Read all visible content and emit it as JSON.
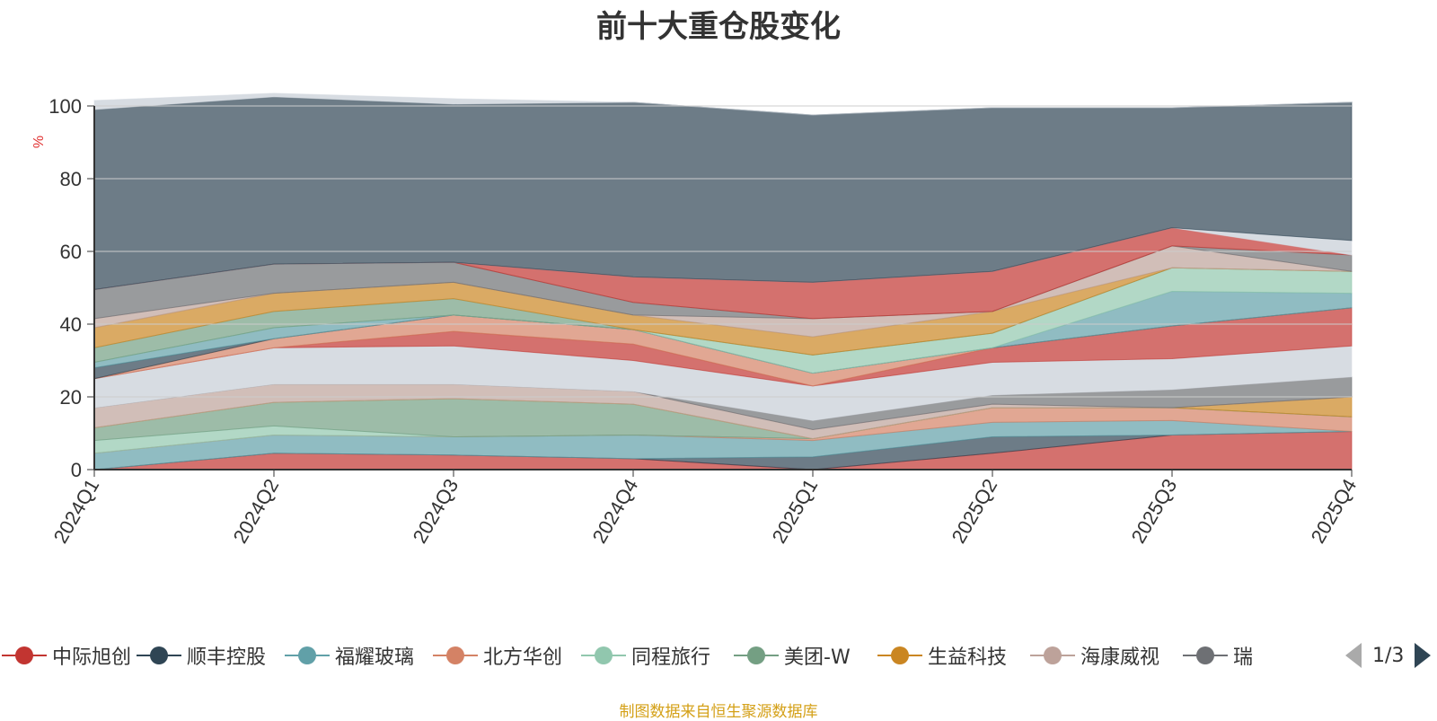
{
  "title": "前十大重仓股变化",
  "source": "制图数据来自恒生聚源数据库",
  "pager": {
    "text": "1/3"
  },
  "chart_data": {
    "type": "area",
    "stacked": true,
    "title": "前十大重仓股变化",
    "ylabel": "%",
    "ylim": [
      0,
      100
    ],
    "yticks": [
      0,
      20,
      40,
      60,
      80,
      100
    ],
    "grid": true,
    "categories": [
      "2024Q1",
      "2024Q2",
      "2024Q3",
      "2024Q4",
      "2025Q1",
      "2025Q2",
      "2025Q3",
      "2025Q4"
    ],
    "legend_position": "bottom",
    "legend": [
      {
        "name": "中际旭创",
        "color": "#c23531"
      },
      {
        "name": "顺丰控股",
        "color": "#2f4554"
      },
      {
        "name": "福耀玻璃",
        "color": "#61a0a8"
      },
      {
        "name": "北方华创",
        "color": "#d48265"
      },
      {
        "name": "同程旅行",
        "color": "#91c7ae"
      },
      {
        "name": "美团-W",
        "color": "#749f83"
      },
      {
        "name": "生益科技",
        "color": "#ca8622"
      },
      {
        "name": "海康威视",
        "color": "#bda29a"
      },
      {
        "name": "瑞",
        "color": "#6e7074"
      }
    ],
    "series": [
      {
        "color": "#c23531",
        "values": [
          0,
          4.5,
          4,
          3,
          0,
          4.5,
          9.5,
          10.5
        ]
      },
      {
        "color": "#2f4554",
        "values": [
          0,
          0,
          0,
          0,
          3.5,
          4.5,
          0,
          0
        ]
      },
      {
        "color": "#61a0a8",
        "values": [
          4.5,
          5,
          5,
          6.5,
          4.5,
          4,
          4,
          0
        ]
      },
      {
        "color": "#d48265",
        "values": [
          0,
          0,
          0,
          0,
          0.5,
          4,
          3.5,
          4
        ]
      },
      {
        "color": "#91c7ae",
        "values": [
          3.5,
          2.5,
          0,
          0,
          0,
          0,
          0,
          0
        ]
      },
      {
        "color": "#749f83",
        "values": [
          3.5,
          6.5,
          10.5,
          8.5,
          0,
          0,
          0,
          0
        ]
      },
      {
        "color": "#ca8622",
        "values": [
          0,
          0,
          0,
          0,
          0,
          0,
          0,
          5.5
        ]
      },
      {
        "color": "#bda29a",
        "values": [
          5.5,
          5,
          4,
          3.5,
          2.5,
          1,
          0,
          0
        ]
      },
      {
        "color": "#6e7074",
        "values": [
          0,
          0,
          0,
          0,
          2.5,
          2.5,
          5,
          5.5
        ]
      },
      {
        "color": "#d7dce2",
        "values": [
          8,
          10,
          10.5,
          8.5,
          9.5,
          9,
          8.5,
          8.5
        ]
      },
      {
        "color": "#c23531",
        "values": [
          0,
          0,
          4,
          4.5,
          0,
          4,
          9,
          10.5
        ]
      },
      {
        "color": "#d48265",
        "values": [
          0,
          2.5,
          4.5,
          4,
          3.5,
          0,
          0,
          0
        ]
      },
      {
        "color": "#2f4554",
        "values": [
          3,
          0,
          0,
          0,
          0,
          0,
          0,
          0
        ]
      },
      {
        "color": "#61a0a8",
        "values": [
          1.5,
          3,
          0,
          0,
          0,
          0,
          9.5,
          4
        ]
      },
      {
        "color": "#91c7ae",
        "values": [
          0,
          0,
          0,
          0,
          5,
          4,
          6.5,
          6
        ]
      },
      {
        "color": "#749f83",
        "values": [
          4,
          4.5,
          4.5,
          0,
          0,
          0,
          0,
          0
        ]
      },
      {
        "color": "#ca8622",
        "values": [
          5.5,
          5,
          4.5,
          4,
          5,
          6,
          0,
          0
        ]
      },
      {
        "color": "#bda29a",
        "values": [
          2.5,
          0,
          0,
          0,
          5,
          0,
          6,
          0
        ]
      },
      {
        "color": "#6e7074",
        "values": [
          8,
          8,
          5.5,
          3.5,
          0,
          0,
          0,
          4.5
        ]
      },
      {
        "color": "#c23531",
        "values": [
          0,
          0,
          0,
          7,
          10,
          11,
          5,
          0
        ]
      },
      {
        "color": "#d7dce2",
        "values": [
          0,
          0,
          0,
          0,
          0,
          0,
          0,
          4
        ]
      },
      {
        "color": "#2f4554",
        "values": [
          49.5,
          46,
          43.5,
          48,
          46,
          45,
          33,
          38
        ]
      },
      {
        "color": "#d7dce2",
        "values": [
          2.5,
          1,
          1.5,
          0,
          0,
          0,
          0,
          0
        ]
      }
    ]
  }
}
